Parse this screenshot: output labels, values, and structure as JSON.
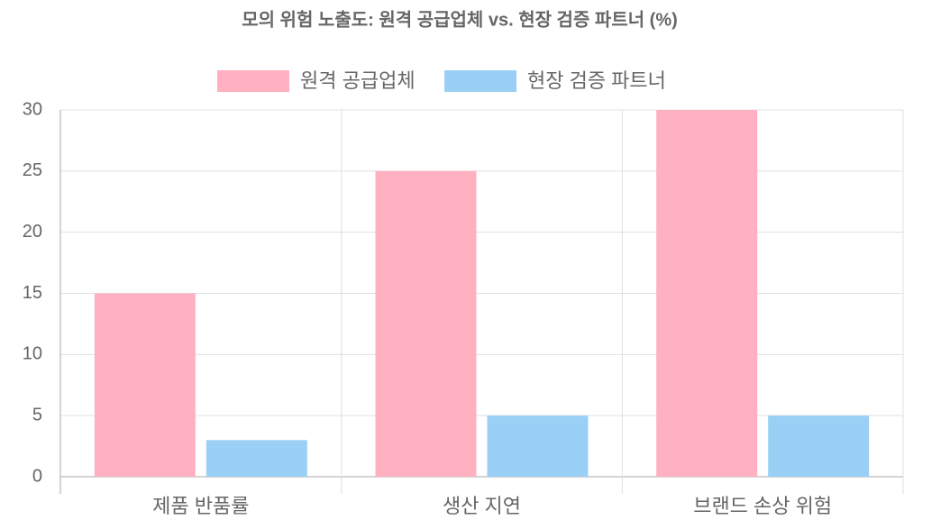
{
  "chart_data": {
    "type": "bar",
    "title": "모의 위험 노출도: 원격 공급업체 vs. 현장 검증 파트너 (%)",
    "categories": [
      "제품 반품률",
      "생산 지연",
      "브랜드 손상 위험"
    ],
    "series": [
      {
        "name": "원격 공급업체",
        "color": "#ffb1c1",
        "values": [
          15,
          25,
          30
        ]
      },
      {
        "name": "현장 검증 파트너",
        "color": "#9ad0f5",
        "values": [
          3,
          5,
          5
        ]
      }
    ],
    "ylim": [
      0,
      30
    ],
    "yticks": [
      0,
      5,
      10,
      15,
      20,
      25,
      30
    ],
    "grid": true,
    "legend": "top"
  }
}
